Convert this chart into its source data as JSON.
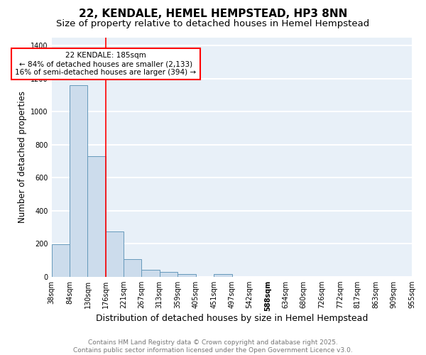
{
  "title": "22, KENDALE, HEMEL HEMPSTEAD, HP3 8NN",
  "subtitle": "Size of property relative to detached houses in Hemel Hempstead",
  "xlabel": "Distribution of detached houses by size in Hemel Hempstead",
  "ylabel": "Number of detached properties",
  "bin_edges": [
    38,
    84,
    130,
    176,
    221,
    267,
    313,
    359,
    405,
    451,
    497,
    542,
    588,
    634,
    680,
    726,
    772,
    817,
    863,
    909,
    955
  ],
  "bin_labels": [
    "38sqm",
    "84sqm",
    "130sqm",
    "176sqm",
    "221sqm",
    "267sqm",
    "313sqm",
    "359sqm",
    "405sqm",
    "451sqm",
    "497sqm",
    "542sqm",
    "588sqm",
    "634sqm",
    "680sqm",
    "726sqm",
    "772sqm",
    "817sqm",
    "863sqm",
    "909sqm",
    "955sqm"
  ],
  "bar_heights": [
    195,
    1160,
    730,
    275,
    105,
    40,
    28,
    15,
    0,
    15,
    0,
    0,
    0,
    0,
    0,
    0,
    0,
    0,
    0,
    0
  ],
  "bar_color": "#ccdcec",
  "bar_edge_color": "#6699bb",
  "vline_x": 176,
  "vline_color": "red",
  "annotation_text": "22 KENDALE: 185sqm\n← 84% of detached houses are smaller (2,133)\n16% of semi-detached houses are larger (394) →",
  "annotation_box_color": "white",
  "annotation_box_edge": "red",
  "ylim": [
    0,
    1450
  ],
  "yticks": [
    0,
    200,
    400,
    600,
    800,
    1000,
    1200,
    1400
  ],
  "xlim_left": 38,
  "xlim_right": 955,
  "background_color": "#e8f0f8",
  "grid_color": "white",
  "footer_line1": "Contains HM Land Registry data © Crown copyright and database right 2025.",
  "footer_line2": "Contains public sector information licensed under the Open Government Licence v3.0.",
  "title_fontsize": 11,
  "subtitle_fontsize": 9.5,
  "xlabel_fontsize": 9,
  "ylabel_fontsize": 8.5,
  "tick_fontsize": 7,
  "footer_fontsize": 6.5,
  "annotation_fontsize": 7.5,
  "highlight_label_idx": 12
}
